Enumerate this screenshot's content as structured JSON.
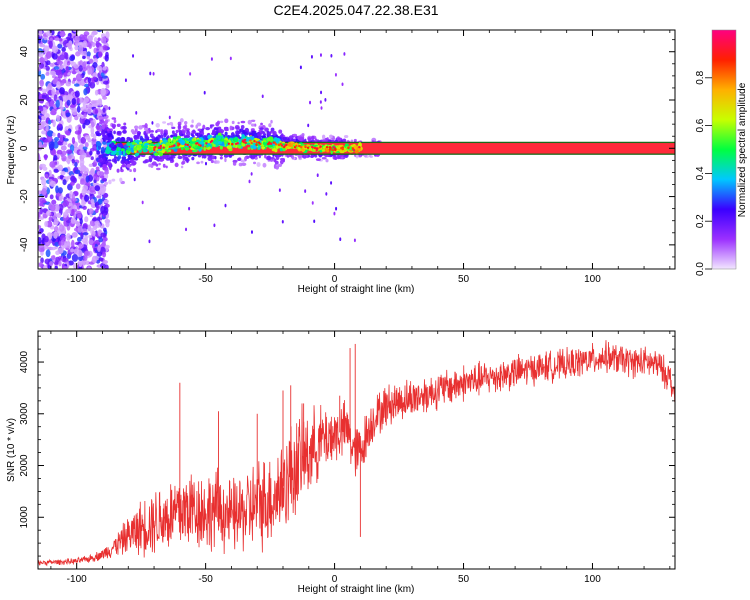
{
  "title": "C2E4.2025.047.22.38.E31",
  "chart_data": [
    {
      "type": "heatmap",
      "xlabel": "Height of straight line (km)",
      "ylabel": "Frequency (Hz)",
      "xlim": [
        -115,
        132
      ],
      "ylim": [
        -50,
        49
      ],
      "xticks": [
        -100,
        -50,
        0,
        50,
        100
      ],
      "yticks": [
        -40,
        -20,
        0,
        20,
        40
      ],
      "grid": false,
      "colorbar": {
        "label": "Normalized spectral amplitude",
        "range": [
          0,
          1
        ],
        "ticks": [
          0.0,
          0.2,
          0.4,
          0.6,
          0.8
        ],
        "tick_labels": [
          "0.0",
          "0.2",
          "0.4",
          "0.6",
          "0.8"
        ],
        "colormap": [
          "#f2e6ff",
          "#9b30ff",
          "#3a00ff",
          "#00c8ff",
          "#00ff40",
          "#c8ff00",
          "#ffb000",
          "#ff2000",
          "#ff0080"
        ]
      },
      "carrier": {
        "x_start": -85,
        "x_end": 132,
        "frequency_hz": 0,
        "band_hz": [
          -2.5,
          2.5
        ],
        "band_color": "#ff2a3a",
        "edge_color": "#1a6a1a"
      },
      "meander": [
        [
          -90,
          0
        ],
        [
          -85,
          0
        ],
        [
          -80,
          -1
        ],
        [
          -75,
          1
        ],
        [
          -70,
          0
        ],
        [
          -65,
          1
        ],
        [
          -60,
          2
        ],
        [
          -55,
          1
        ],
        [
          -50,
          2
        ],
        [
          -45,
          3
        ],
        [
          -40,
          2
        ],
        [
          -35,
          3
        ],
        [
          -30,
          2
        ],
        [
          -25,
          2
        ],
        [
          -20,
          1
        ],
        [
          -15,
          1
        ],
        [
          -10,
          0
        ],
        [
          -5,
          0
        ],
        [
          0,
          0
        ],
        [
          5,
          0
        ],
        [
          10,
          0
        ]
      ],
      "noise_region": {
        "x_start": -115,
        "x_end": -88,
        "freq_range": [
          -50,
          49
        ]
      }
    },
    {
      "type": "line",
      "xlabel": "Height of straight line (km)",
      "ylabel": "SNR (10 * v/v)",
      "xlim": [
        -115,
        132
      ],
      "ylim": [
        0,
        4600
      ],
      "xticks": [
        -100,
        -50,
        0,
        50,
        100
      ],
      "yticks": [
        1000,
        2000,
        3000,
        4000
      ],
      "grid": false,
      "series": [
        {
          "color": "#e83030",
          "x": [
            -115,
            -100,
            -95,
            -90,
            -85,
            -80,
            -75,
            -70,
            -65,
            -60,
            -55,
            -50,
            -45,
            -40,
            -35,
            -30,
            -25,
            -20,
            -15,
            -10,
            -5,
            0,
            5,
            8,
            10,
            15,
            20,
            25,
            30,
            40,
            50,
            60,
            70,
            80,
            90,
            100,
            105,
            110,
            115,
            120,
            125,
            130,
            132
          ],
          "values": [
            120,
            150,
            200,
            280,
            450,
            650,
            800,
            950,
            1000,
            1100,
            1200,
            1100,
            1150,
            1000,
            1100,
            1250,
            1350,
            1600,
            2000,
            2250,
            2500,
            2600,
            2700,
            2200,
            2300,
            2900,
            3150,
            3250,
            3300,
            3450,
            3600,
            3700,
            3800,
            3900,
            3950,
            4050,
            4100,
            4050,
            4000,
            4000,
            3950,
            3700,
            3300
          ],
          "spread": [
            80,
            100,
            120,
            180,
            350,
            600,
            900,
            1100,
            1200,
            1400,
            1300,
            1300,
            1300,
            1200,
            1300,
            1500,
            1500,
            1600,
            1700,
            1400,
            1100,
            1000,
            900,
            900,
            900,
            700,
            700,
            650,
            650,
            600,
            600,
            550,
            550,
            500,
            500,
            500,
            500,
            500,
            500,
            500,
            500,
            500,
            400
          ],
          "spikes": [
            [
              -60,
              3600
            ],
            [
              -45,
              3050
            ],
            [
              -30,
              3000
            ],
            [
              -20,
              3450
            ],
            [
              -17,
              3550
            ],
            [
              -12,
              3200
            ],
            [
              2,
              3350
            ],
            [
              6,
              4270
            ],
            [
              8,
              4350
            ],
            [
              10,
              620
            ]
          ]
        }
      ]
    }
  ]
}
